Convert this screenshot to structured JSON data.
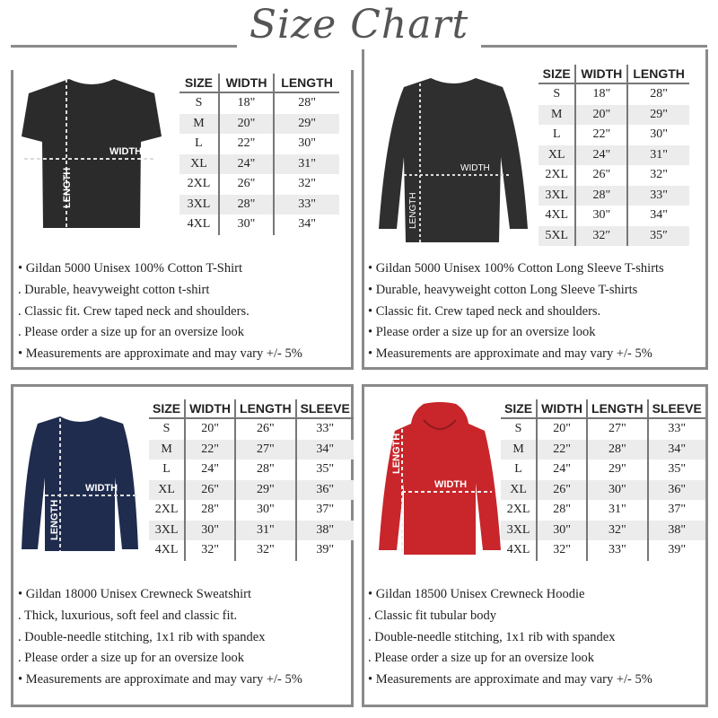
{
  "title": "Size Chart",
  "panels": [
    {
      "garment": "t-shirt",
      "color": "#2b2b2b",
      "labels": {
        "width": "WIDTH",
        "length": "LENGTH"
      },
      "headers": [
        "SIZE",
        "WIDTH",
        "LENGTH"
      ],
      "rows": [
        [
          "S",
          "18\"",
          "28\""
        ],
        [
          "M",
          "20\"",
          "29\""
        ],
        [
          "L",
          "22\"",
          "30\""
        ],
        [
          "XL",
          "24\"",
          "31\""
        ],
        [
          "2XL",
          "26\"",
          "32\""
        ],
        [
          "3XL",
          "28\"",
          "33\""
        ],
        [
          "4XL",
          "30\"",
          "34\""
        ]
      ],
      "bullets": [
        "• Gildan 5000 Unisex 100% Cotton T-Shirt",
        ". Durable, heavyweight cotton t-shirt",
        ". Classic fit. Crew taped neck and shoulders.",
        ". Please order a size up for an oversize look",
        "• Measurements are approximate and may vary +/- 5%"
      ]
    },
    {
      "garment": "long-sleeve-shirt",
      "color": "#2f2f2f",
      "labels": {
        "width": "WIDTH",
        "length": "LENGTH"
      },
      "headers": [
        "SIZE",
        "WIDTH",
        "LENGTH"
      ],
      "rows": [
        [
          "S",
          "18\"",
          "28\""
        ],
        [
          "M",
          "20\"",
          "29\""
        ],
        [
          "L",
          "22\"",
          "30\""
        ],
        [
          "XL",
          "24\"",
          "31\""
        ],
        [
          "2XL",
          "26\"",
          "32\""
        ],
        [
          "3XL",
          "28\"",
          "33\""
        ],
        [
          "4XL",
          "30\"",
          "34\""
        ],
        [
          "5XL",
          "32″",
          "35″"
        ]
      ],
      "bullets": [
        "• Gildan 5000 Unisex 100% Cotton Long Sleeve T-shirts",
        "• Durable, heavyweight cotton Long Sleeve T-shirts",
        "• Classic fit. Crew taped neck and shoulders.",
        "• Please order a size up for an oversize look",
        "• Measurements are approximate and may vary +/- 5%"
      ]
    },
    {
      "garment": "sweatshirt",
      "color": "#1f2c4e",
      "labels": {
        "width": "WIDTH",
        "length": "LENGTH"
      },
      "headers": [
        "SIZE",
        "WIDTH",
        "LENGTH",
        "SLEEVE"
      ],
      "rows": [
        [
          "S",
          "20\"",
          "26\"",
          "33\""
        ],
        [
          "M",
          "22\"",
          "27\"",
          "34\""
        ],
        [
          "L",
          "24\"",
          "28\"",
          "35\""
        ],
        [
          "XL",
          "26\"",
          "29\"",
          "36\""
        ],
        [
          "2XL",
          "28\"",
          "30\"",
          "37\""
        ],
        [
          "3XL",
          "30\"",
          "31\"",
          "38\""
        ],
        [
          "4XL",
          "32\"",
          "32\"",
          "39\""
        ]
      ],
      "bullets": [
        "• Gildan 18000 Unisex Crewneck Sweatshirt",
        ". Thick, luxurious, soft feel and classic fit.",
        ". Double-needle stitching, 1x1 rib with spandex",
        ". Please order a size up for an oversize look",
        "• Measurements are approximate and may vary +/- 5%"
      ]
    },
    {
      "garment": "hoodie",
      "color": "#c8262b",
      "labels": {
        "width": "WIDTH",
        "length": "LENGTH"
      },
      "headers": [
        "SIZE",
        "WIDTH",
        "LENGTH",
        "SLEEVE"
      ],
      "rows": [
        [
          "S",
          "20\"",
          "27\"",
          "33\""
        ],
        [
          "M",
          "22\"",
          "28\"",
          "34\""
        ],
        [
          "L",
          "24\"",
          "29\"",
          "35\""
        ],
        [
          "XL",
          "26\"",
          "30\"",
          "36\""
        ],
        [
          "2XL",
          "28\"",
          "31\"",
          "37\""
        ],
        [
          "3XL",
          "30\"",
          "32\"",
          "38\""
        ],
        [
          "4XL",
          "32\"",
          "33\"",
          "39\""
        ]
      ],
      "bullets": [
        "• Gildan 18500 Unisex Crewneck Hoodie",
        ". Classic fit tubular body",
        ". Double-needle stitching, 1x1 rib with spandex",
        ". Please order a size up for an oversize look",
        "• Measurements are approximate and may vary +/- 5%"
      ]
    }
  ]
}
